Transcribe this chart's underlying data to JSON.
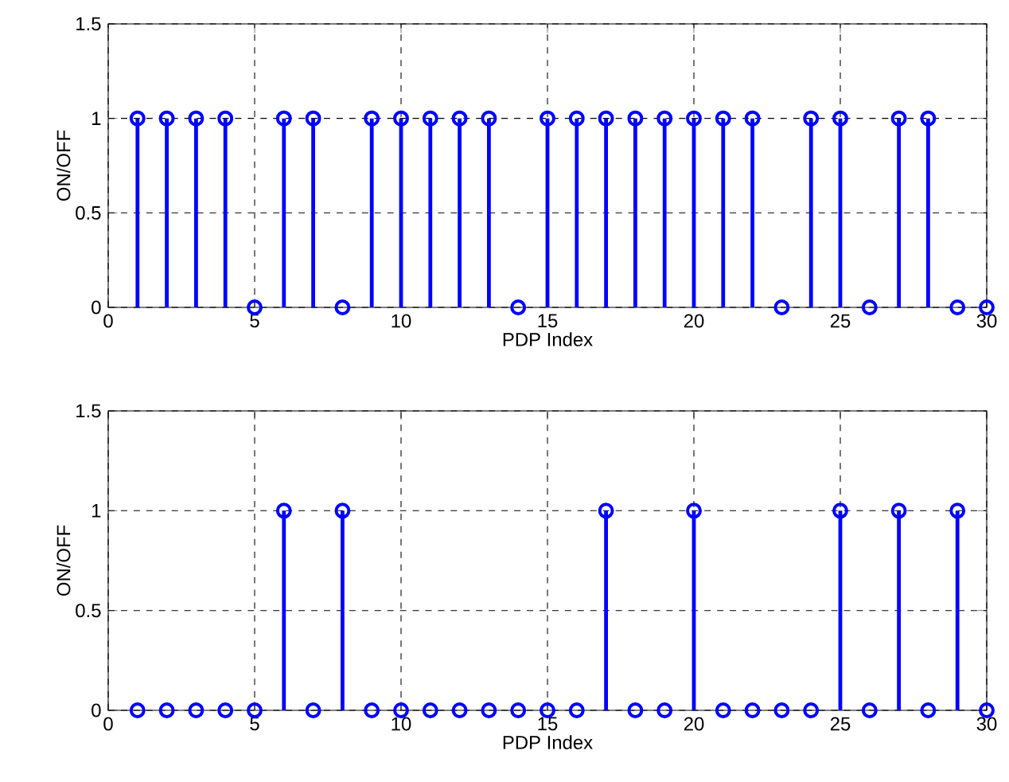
{
  "chart_data": [
    {
      "type": "lollipop",
      "xlabel": "PDP Index",
      "ylabel": "ON/OFF",
      "color": "#0000ff",
      "marker": "circle",
      "grid": true,
      "x": [
        1,
        2,
        3,
        4,
        5,
        6,
        7,
        8,
        9,
        10,
        11,
        12,
        13,
        14,
        15,
        16,
        17,
        18,
        19,
        20,
        21,
        22,
        23,
        24,
        25,
        26,
        27,
        28,
        29,
        30
      ],
      "values": [
        1,
        1,
        1,
        1,
        0,
        1,
        1,
        0,
        1,
        1,
        1,
        1,
        1,
        0,
        1,
        1,
        1,
        1,
        1,
        1,
        1,
        1,
        0,
        1,
        1,
        0,
        1,
        1,
        0,
        0
      ],
      "xlim": [
        0,
        30
      ],
      "ylim": [
        0,
        1.5
      ],
      "xticks": [
        0,
        5,
        10,
        15,
        20,
        25,
        30
      ],
      "yticks": [
        0,
        0.5,
        1,
        1.5
      ]
    },
    {
      "type": "lollipop",
      "xlabel": "PDP Index",
      "ylabel": "ON/OFF",
      "color": "#0000ff",
      "marker": "circle",
      "grid": true,
      "x": [
        1,
        2,
        3,
        4,
        5,
        6,
        7,
        8,
        9,
        10,
        11,
        12,
        13,
        14,
        15,
        16,
        17,
        18,
        19,
        20,
        21,
        22,
        23,
        24,
        25,
        26,
        27,
        28,
        29,
        30
      ],
      "values": [
        0,
        0,
        0,
        0,
        0,
        1,
        0,
        1,
        0,
        0,
        0,
        0,
        0,
        0,
        0,
        0,
        1,
        0,
        0,
        1,
        0,
        0,
        0,
        0,
        1,
        0,
        1,
        0,
        1,
        0
      ],
      "xlim": [
        0,
        30
      ],
      "ylim": [
        0,
        1.5
      ],
      "xticks": [
        0,
        5,
        10,
        15,
        20,
        25,
        30
      ],
      "yticks": [
        0,
        0.5,
        1,
        1.5
      ]
    }
  ]
}
